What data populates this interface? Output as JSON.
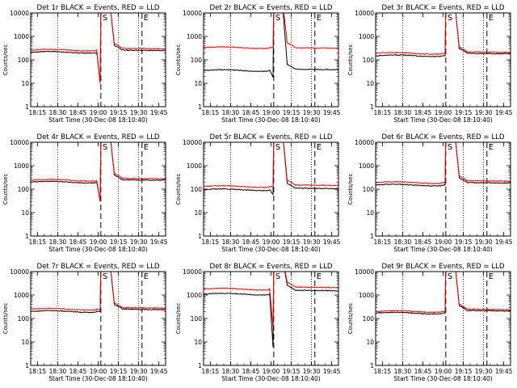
{
  "figure": {
    "xlabel": "Start Time (30-Dec-08 18:10:40)",
    "ylabel": "Counts/sec",
    "xticks": [
      "18:15",
      "18:30",
      "18:45",
      "19:00",
      "19:15",
      "19:30",
      "19:45"
    ],
    "yticks": [
      "1",
      "10",
      "100",
      "1000",
      "10000"
    ],
    "marker_labels": [
      "S",
      "E"
    ],
    "colors": {
      "events": "#000000",
      "lld": "#ff0000"
    }
  },
  "chart_data": [
    {
      "type": "line",
      "title": "Det 1r BLACK = Events, RED = LLD",
      "ylim": [
        1,
        10000
      ],
      "y_scale": "log",
      "series": [
        {
          "name": "Events",
          "base": 210,
          "pre_dip": 10,
          "post": 260
        },
        {
          "name": "LLD",
          "base": 260,
          "pre_dip": 10,
          "post": 310
        }
      ]
    },
    {
      "type": "line",
      "title": "Det 2r BLACK = Events, RED = LLD",
      "ylim": [
        1,
        10000
      ],
      "y_scale": "log",
      "series": [
        {
          "name": "Events",
          "base": 35,
          "pre_dip": 18,
          "post": 40
        },
        {
          "name": "LLD",
          "base": 330,
          "pre_dip": 330,
          "post": 330
        }
      ]
    },
    {
      "type": "line",
      "title": "Det 3r BLACK = Events, RED = LLD",
      "ylim": [
        1,
        10000
      ],
      "y_scale": "log",
      "series": [
        {
          "name": "Events",
          "base": 150,
          "pre_dip": 150,
          "post": 190
        },
        {
          "name": "LLD",
          "base": 190,
          "pre_dip": 190,
          "post": 220
        }
      ]
    },
    {
      "type": "line",
      "title": "Det 4r BLACK = Events, RED = LLD",
      "ylim": [
        1,
        10000
      ],
      "y_scale": "log",
      "series": [
        {
          "name": "Events",
          "base": 200,
          "pre_dip": 30,
          "post": 250
        },
        {
          "name": "LLD",
          "base": 240,
          "pre_dip": 30,
          "post": 290
        }
      ]
    },
    {
      "type": "line",
      "title": "Det 5r BLACK = Events, RED = LLD",
      "ylim": [
        1,
        10000
      ],
      "y_scale": "log",
      "series": [
        {
          "name": "Events",
          "base": 95,
          "pre_dip": 60,
          "post": 110
        },
        {
          "name": "LLD",
          "base": 130,
          "pre_dip": 130,
          "post": 150
        }
      ]
    },
    {
      "type": "line",
      "title": "Det 6r BLACK = Events, RED = LLD",
      "ylim": [
        1,
        10000
      ],
      "y_scale": "log",
      "series": [
        {
          "name": "Events",
          "base": 150,
          "pre_dip": 150,
          "post": 190
        },
        {
          "name": "LLD",
          "base": 190,
          "pre_dip": 190,
          "post": 230
        }
      ]
    },
    {
      "type": "line",
      "title": "Det 7r BLACK = Events, RED = LLD",
      "ylim": [
        1,
        10000
      ],
      "y_scale": "log",
      "series": [
        {
          "name": "Events",
          "base": 200,
          "pre_dip": 200,
          "post": 250
        },
        {
          "name": "LLD",
          "base": 250,
          "pre_dip": 250,
          "post": 290
        }
      ]
    },
    {
      "type": "line",
      "title": "Det 8r BLACK = Events, RED = LLD",
      "ylim": [
        1,
        10000
      ],
      "y_scale": "log",
      "series": [
        {
          "name": "Events",
          "base": 1100,
          "pre_dip": 6,
          "post": 1600
        },
        {
          "name": "LLD",
          "base": 1800,
          "pre_dip": 40,
          "post": 2200
        }
      ]
    },
    {
      "type": "line",
      "title": "Det 9r BLACK = Events, RED = LLD",
      "ylim": [
        1,
        10000
      ],
      "y_scale": "log",
      "series": [
        {
          "name": "Events",
          "base": 170,
          "pre_dip": 170,
          "post": 220
        },
        {
          "name": "LLD",
          "base": 200,
          "pre_dip": 200,
          "post": 250
        }
      ]
    }
  ]
}
